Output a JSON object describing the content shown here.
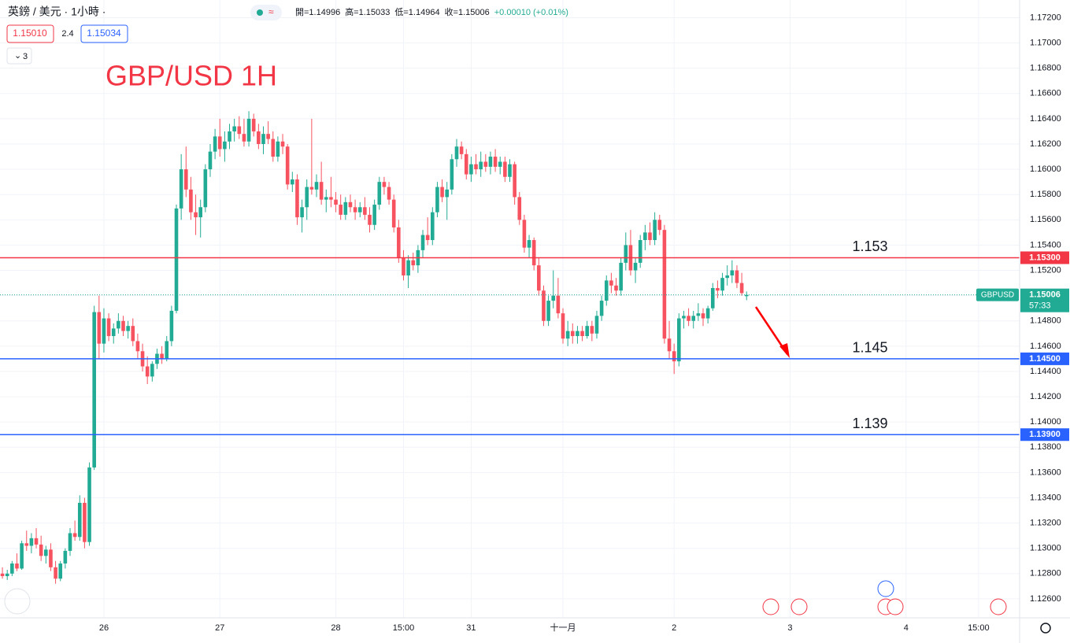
{
  "header": {
    "symbol": "英鎊 / 美元 · 1小時 ·",
    "ohlc": [
      "開=1.14996",
      "高=1.15033",
      "低=1.14964",
      "收=1.15006",
      "+0.00010 (+0.01%)"
    ],
    "sell": "1.15010",
    "spread": "2.4",
    "buy": "1.15034",
    "indicators": "3"
  },
  "chart_data": {
    "type": "candlestick",
    "title": "GBP/USD 1H",
    "up_color": "#22ab94",
    "down_color": "#f7525f",
    "grid": true,
    "xlim": [
      -0.5,
      210.5
    ],
    "xticks": [
      {
        "value": 21,
        "label": "26"
      },
      {
        "value": 45,
        "label": "27"
      },
      {
        "value": 69,
        "label": "28"
      },
      {
        "value": 83,
        "label": "15:00"
      },
      {
        "value": 97,
        "label": "31"
      },
      {
        "value": 116,
        "label": "十一月"
      },
      {
        "value": 139,
        "label": "2"
      },
      {
        "value": 163,
        "label": "3"
      },
      {
        "value": 187,
        "label": "4"
      },
      {
        "value": 202,
        "label": "15:00"
      }
    ],
    "ylim": [
      1.1245,
      1.1734
    ],
    "yticks": [
      {
        "value": 1.126,
        "label": "1.12600"
      },
      {
        "value": 1.128,
        "label": "1.12800"
      },
      {
        "value": 1.13,
        "label": "1.13000"
      },
      {
        "value": 1.132,
        "label": "1.13200"
      },
      {
        "value": 1.134,
        "label": "1.13400"
      },
      {
        "value": 1.136,
        "label": "1.13600"
      },
      {
        "value": 1.138,
        "label": "1.13800"
      },
      {
        "value": 1.14,
        "label": "1.14000"
      },
      {
        "value": 1.142,
        "label": "1.14200"
      },
      {
        "value": 1.144,
        "label": "1.14400"
      },
      {
        "value": 1.146,
        "label": "1.14600"
      },
      {
        "value": 1.148,
        "label": "1.14800"
      },
      {
        "value": 1.15,
        "label": "1.15000"
      },
      {
        "value": 1.152,
        "label": "1.15200"
      },
      {
        "value": 1.154,
        "label": "1.15400"
      },
      {
        "value": 1.156,
        "label": "1.15600"
      },
      {
        "value": 1.158,
        "label": "1.15800"
      },
      {
        "value": 1.16,
        "label": "1.16000"
      },
      {
        "value": 1.162,
        "label": "1.16200"
      },
      {
        "value": 1.164,
        "label": "1.16400"
      },
      {
        "value": 1.166,
        "label": "1.16600"
      },
      {
        "value": 1.168,
        "label": "1.16800"
      },
      {
        "value": 1.17,
        "label": "1.17000"
      },
      {
        "value": 1.172,
        "label": "1.17200"
      }
    ],
    "levels": [
      {
        "value": 1.153,
        "axis_label": "1.15300",
        "color": "#f23645"
      },
      {
        "value": 1.145,
        "axis_label": "1.14500",
        "color": "#2962ff"
      },
      {
        "value": 1.139,
        "axis_label": "1.13900",
        "color": "#2962ff"
      }
    ],
    "last_price": {
      "value": 1.15006,
      "symbol": "GBPUSD",
      "countdown": "57:33"
    },
    "candles": [
      [
        1.128,
        1.1285,
        1.1276,
        1.1278
      ],
      [
        1.1278,
        1.1283,
        1.1275,
        1.128
      ],
      [
        1.128,
        1.129,
        1.1278,
        1.1288
      ],
      [
        1.1288,
        1.1296,
        1.1282,
        1.1284
      ],
      [
        1.1284,
        1.1306,
        1.1283,
        1.1304
      ],
      [
        1.1304,
        1.1314,
        1.1298,
        1.1302
      ],
      [
        1.1302,
        1.1312,
        1.1296,
        1.1308
      ],
      [
        1.1308,
        1.1316,
        1.13,
        1.1303
      ],
      [
        1.1303,
        1.131,
        1.129,
        1.1294
      ],
      [
        1.1294,
        1.1302,
        1.1288,
        1.1299
      ],
      [
        1.1299,
        1.1304,
        1.1282,
        1.1285
      ],
      [
        1.1285,
        1.129,
        1.1272,
        1.1276
      ],
      [
        1.1276,
        1.129,
        1.1274,
        1.1288
      ],
      [
        1.1288,
        1.13,
        1.1284,
        1.1298
      ],
      [
        1.1298,
        1.1316,
        1.1294,
        1.1312
      ],
      [
        1.1312,
        1.1322,
        1.1306,
        1.1309
      ],
      [
        1.1309,
        1.1342,
        1.1306,
        1.1336
      ],
      [
        1.1336,
        1.134,
        1.13,
        1.1305
      ],
      [
        1.1305,
        1.1368,
        1.1302,
        1.1364
      ],
      [
        1.1364,
        1.1492,
        1.1362,
        1.1487
      ],
      [
        1.1487,
        1.15,
        1.145,
        1.1462
      ],
      [
        1.1462,
        1.149,
        1.1455,
        1.1482
      ],
      [
        1.1482,
        1.1486,
        1.1464,
        1.1468
      ],
      [
        1.1468,
        1.1478,
        1.1462,
        1.1474
      ],
      [
        1.1474,
        1.1486,
        1.147,
        1.148
      ],
      [
        1.148,
        1.1484,
        1.1468,
        1.1472
      ],
      [
        1.1472,
        1.148,
        1.1466,
        1.1476
      ],
      [
        1.1476,
        1.1482,
        1.146,
        1.1464
      ],
      [
        1.1464,
        1.147,
        1.145,
        1.1456
      ],
      [
        1.1456,
        1.1462,
        1.144,
        1.1444
      ],
      [
        1.1444,
        1.1452,
        1.143,
        1.1436
      ],
      [
        1.1436,
        1.1448,
        1.1432,
        1.1446
      ],
      [
        1.1446,
        1.1458,
        1.1442,
        1.1454
      ],
      [
        1.1454,
        1.146,
        1.1446,
        1.145
      ],
      [
        1.145,
        1.1468,
        1.1448,
        1.1464
      ],
      [
        1.1464,
        1.1492,
        1.146,
        1.1488
      ],
      [
        1.1488,
        1.1572,
        1.1486,
        1.1569
      ],
      [
        1.1569,
        1.1612,
        1.156,
        1.16
      ],
      [
        1.16,
        1.1618,
        1.1578,
        1.1584
      ],
      [
        1.1584,
        1.1594,
        1.156,
        1.1566
      ],
      [
        1.1566,
        1.158,
        1.1548,
        1.1562
      ],
      [
        1.1562,
        1.1576,
        1.1546,
        1.157
      ],
      [
        1.157,
        1.1604,
        1.1566,
        1.16
      ],
      [
        1.16,
        1.162,
        1.1594,
        1.1614
      ],
      [
        1.1614,
        1.1632,
        1.1608,
        1.1626
      ],
      [
        1.1626,
        1.164,
        1.161,
        1.1616
      ],
      [
        1.1616,
        1.163,
        1.1606,
        1.1622
      ],
      [
        1.1622,
        1.1636,
        1.1616,
        1.163
      ],
      [
        1.163,
        1.164,
        1.1622,
        1.1634
      ],
      [
        1.1634,
        1.1642,
        1.1624,
        1.1628
      ],
      [
        1.1628,
        1.164,
        1.1618,
        1.1622
      ],
      [
        1.1622,
        1.1646,
        1.1618,
        1.164
      ],
      [
        1.164,
        1.1644,
        1.1626,
        1.163
      ],
      [
        1.163,
        1.1636,
        1.1616,
        1.162
      ],
      [
        1.162,
        1.1634,
        1.1612,
        1.1628
      ],
      [
        1.1628,
        1.1638,
        1.162,
        1.1624
      ],
      [
        1.1624,
        1.163,
        1.1606,
        1.161
      ],
      [
        1.161,
        1.1626,
        1.1606,
        1.1622
      ],
      [
        1.1622,
        1.1628,
        1.1612,
        1.1618
      ],
      [
        1.1618,
        1.162,
        1.1584,
        1.1588
      ],
      [
        1.1588,
        1.1598,
        1.1582,
        1.1592
      ],
      [
        1.1592,
        1.1596,
        1.1556,
        1.1562
      ],
      [
        1.1562,
        1.1576,
        1.155,
        1.157
      ],
      [
        1.157,
        1.1592,
        1.156,
        1.1586
      ],
      [
        1.1586,
        1.164,
        1.158,
        1.1584
      ],
      [
        1.1584,
        1.1596,
        1.1578,
        1.159
      ],
      [
        1.159,
        1.1606,
        1.1572,
        1.1576
      ],
      [
        1.1576,
        1.1584,
        1.1566,
        1.1578
      ],
      [
        1.1578,
        1.1594,
        1.157,
        1.1576
      ],
      [
        1.1576,
        1.1582,
        1.1566,
        1.1572
      ],
      [
        1.1572,
        1.158,
        1.156,
        1.1564
      ],
      [
        1.1564,
        1.1578,
        1.156,
        1.1574
      ],
      [
        1.1574,
        1.158,
        1.1566,
        1.157
      ],
      [
        1.157,
        1.1576,
        1.156,
        1.1566
      ],
      [
        1.1566,
        1.1574,
        1.1562,
        1.157
      ],
      [
        1.157,
        1.1578,
        1.156,
        1.1564
      ],
      [
        1.1564,
        1.157,
        1.155,
        1.1556
      ],
      [
        1.1556,
        1.1576,
        1.1552,
        1.1572
      ],
      [
        1.1572,
        1.1594,
        1.1568,
        1.159
      ],
      [
        1.159,
        1.1594,
        1.158,
        1.1586
      ],
      [
        1.1586,
        1.159,
        1.1572,
        1.1576
      ],
      [
        1.1576,
        1.158,
        1.155,
        1.1554
      ],
      [
        1.1554,
        1.156,
        1.1526,
        1.153
      ],
      [
        1.153,
        1.1536,
        1.1512,
        1.1516
      ],
      [
        1.1516,
        1.1532,
        1.1506,
        1.1528
      ],
      [
        1.1528,
        1.1534,
        1.152,
        1.1524
      ],
      [
        1.1524,
        1.154,
        1.1518,
        1.1536
      ],
      [
        1.1536,
        1.1552,
        1.153,
        1.1548
      ],
      [
        1.1548,
        1.1562,
        1.154,
        1.1544
      ],
      [
        1.1544,
        1.157,
        1.154,
        1.1566
      ],
      [
        1.1566,
        1.159,
        1.1562,
        1.1586
      ],
      [
        1.1586,
        1.1592,
        1.1574,
        1.1578
      ],
      [
        1.1578,
        1.159,
        1.156,
        1.1584
      ],
      [
        1.1584,
        1.1612,
        1.158,
        1.1608
      ],
      [
        1.1608,
        1.1624,
        1.1602,
        1.1618
      ],
      [
        1.1618,
        1.1622,
        1.1608,
        1.1612
      ],
      [
        1.1612,
        1.1616,
        1.1592,
        1.1596
      ],
      [
        1.1596,
        1.161,
        1.159,
        1.1604
      ],
      [
        1.1604,
        1.1612,
        1.1596,
        1.16
      ],
      [
        1.16,
        1.1614,
        1.1594,
        1.1606
      ],
      [
        1.1606,
        1.1612,
        1.1598,
        1.1602
      ],
      [
        1.1602,
        1.1614,
        1.1596,
        1.161
      ],
      [
        1.161,
        1.1616,
        1.1598,
        1.1602
      ],
      [
        1.1602,
        1.161,
        1.1596,
        1.1606
      ],
      [
        1.1606,
        1.161,
        1.159,
        1.1594
      ],
      [
        1.1594,
        1.1608,
        1.159,
        1.1604
      ],
      [
        1.1604,
        1.1606,
        1.1572,
        1.1578
      ],
      [
        1.1578,
        1.1582,
        1.1556,
        1.156
      ],
      [
        1.156,
        1.1564,
        1.1534,
        1.1538
      ],
      [
        1.1538,
        1.1548,
        1.153,
        1.1544
      ],
      [
        1.1544,
        1.1546,
        1.152,
        1.1524
      ],
      [
        1.1524,
        1.153,
        1.15,
        1.1504
      ],
      [
        1.1504,
        1.1508,
        1.1476,
        1.148
      ],
      [
        1.148,
        1.15,
        1.1476,
        1.1496
      ],
      [
        1.1496,
        1.152,
        1.149,
        1.15
      ],
      [
        1.15,
        1.1514,
        1.1482,
        1.1486
      ],
      [
        1.1486,
        1.149,
        1.1462,
        1.1466
      ],
      [
        1.1466,
        1.148,
        1.146,
        1.1472
      ],
      [
        1.1472,
        1.1478,
        1.1462,
        1.1468
      ],
      [
        1.1468,
        1.1476,
        1.1462,
        1.1472
      ],
      [
        1.1472,
        1.1476,
        1.1464,
        1.1468
      ],
      [
        1.1468,
        1.148,
        1.1466,
        1.1476
      ],
      [
        1.1476,
        1.148,
        1.1464,
        1.147
      ],
      [
        1.147,
        1.1488,
        1.1466,
        1.1484
      ],
      [
        1.1484,
        1.15,
        1.148,
        1.1496
      ],
      [
        1.1496,
        1.1516,
        1.1492,
        1.1512
      ],
      [
        1.1512,
        1.1518,
        1.1502,
        1.1508
      ],
      [
        1.1508,
        1.1514,
        1.15,
        1.1504
      ],
      [
        1.1504,
        1.153,
        1.15,
        1.1526
      ],
      [
        1.1526,
        1.155,
        1.152,
        1.154
      ],
      [
        1.154,
        1.1552,
        1.1516,
        1.152
      ],
      [
        1.152,
        1.153,
        1.151,
        1.1526
      ],
      [
        1.1526,
        1.1548,
        1.1522,
        1.1544
      ],
      [
        1.1544,
        1.1556,
        1.1536,
        1.155
      ],
      [
        1.155,
        1.1558,
        1.154,
        1.1544
      ],
      [
        1.1544,
        1.1566,
        1.154,
        1.156
      ],
      [
        1.156,
        1.1564,
        1.1548,
        1.1552
      ],
      [
        1.1552,
        1.1556,
        1.1462,
        1.1466
      ],
      [
        1.1466,
        1.148,
        1.145,
        1.1456
      ],
      [
        1.1456,
        1.1462,
        1.1438,
        1.1448
      ],
      [
        1.1448,
        1.1486,
        1.1444,
        1.1482
      ],
      [
        1.1482,
        1.1488,
        1.1474,
        1.1484
      ],
      [
        1.1484,
        1.149,
        1.1476,
        1.148
      ],
      [
        1.148,
        1.1488,
        1.1474,
        1.1484
      ],
      [
        1.1484,
        1.1494,
        1.148,
        1.1486
      ],
      [
        1.1486,
        1.149,
        1.1476,
        1.1482
      ],
      [
        1.1482,
        1.1492,
        1.1478,
        1.149
      ],
      [
        1.149,
        1.151,
        1.1488,
        1.1506
      ],
      [
        1.1506,
        1.1512,
        1.1498,
        1.1504
      ],
      [
        1.1504,
        1.1518,
        1.15,
        1.1514
      ],
      [
        1.1514,
        1.1524,
        1.1508,
        1.1516
      ],
      [
        1.1516,
        1.1528,
        1.151,
        1.152
      ],
      [
        1.152,
        1.1524,
        1.1506,
        1.151
      ],
      [
        1.151,
        1.1518,
        1.15,
        1.1502
      ],
      [
        1.14996,
        1.15033,
        1.14964,
        1.15006
      ]
    ]
  }
}
